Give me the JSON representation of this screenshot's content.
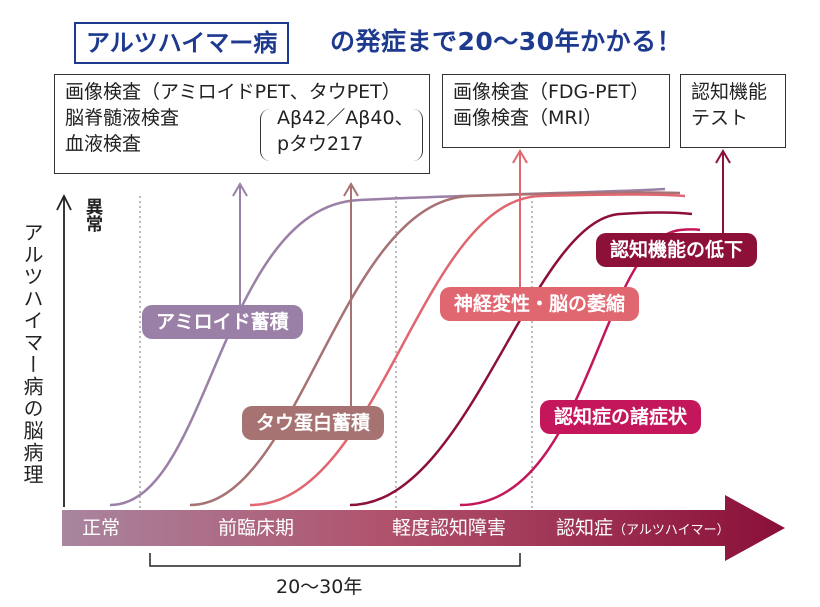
{
  "title": {
    "highlight": "アルツハイマー病",
    "rest": "の発症まで20～30年かかる！"
  },
  "tests": {
    "group1": {
      "line1": "画像検査（アミロイドPET、タウPET）",
      "line2": "脳脊髄液検査",
      "line3": "血液検査",
      "markers_line1": "Aβ42／Aβ40、",
      "markers_line2": "pタウ217"
    },
    "group2": {
      "line1": "画像検査（FDG-PET）",
      "line2": "画像検査（MRI）"
    },
    "group3": {
      "line1": "認知機能",
      "line2": "テスト"
    }
  },
  "y_axis": {
    "label": "アルツハイマー病の脳病理",
    "top_label": "異常"
  },
  "stages": {
    "normal": "正常",
    "preclinical": "前臨床期",
    "mci": "軽度認知障害",
    "dementia": "認知症",
    "dementia_note": "（アルツハイマー）"
  },
  "duration_label": "20～30年",
  "processes": {
    "amyloid": "アミロイド蓄積",
    "tau": "タウ蛋白蓄積",
    "neuro": "神経変性・脳の萎縮",
    "decline": "認知機能の低下",
    "symptoms": "認知症の諸症状"
  },
  "colors": {
    "title": "#1d3a8f",
    "amyloid": "#9a7fa6",
    "tau": "#a67272",
    "neuro": "#e06670",
    "decline": "#8c1038",
    "symptoms": "#c4165a",
    "arrow_start": "#a9859f",
    "arrow_end": "#8a0f38"
  }
}
